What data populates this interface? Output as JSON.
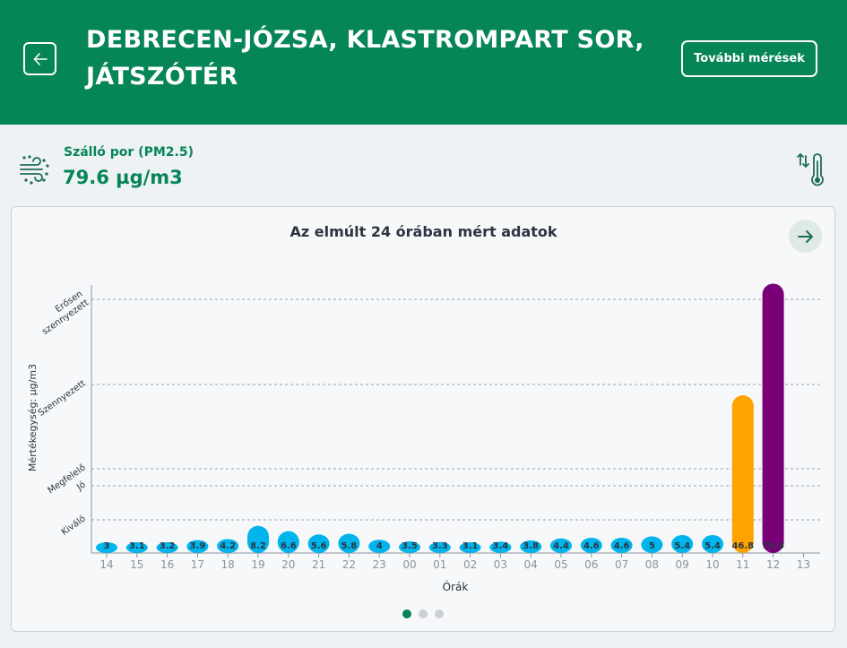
{
  "header": {
    "title": "DEBRECEN-JÓZSA, KLASTROMPART SOR, JÁTSZÓTÉR",
    "more_button": "További mérések",
    "background": "#068557"
  },
  "pollutant": {
    "name": "Szálló por (PM2.5)",
    "value": "79.6 µg/m3"
  },
  "icons": {
    "back": "arrow-left-icon",
    "pollutant": "wind-dust-icon",
    "switch": "thermometer-arrows-icon",
    "next": "arrow-right-icon"
  },
  "chart_data": {
    "type": "bar",
    "title": "Az elmúlt 24 órában mért adatok",
    "xlabel": "Órák",
    "ylabel": "Mértékegység: µg/m3",
    "categories": [
      "14",
      "15",
      "16",
      "17",
      "18",
      "19",
      "20",
      "21",
      "22",
      "23",
      "00",
      "01",
      "02",
      "03",
      "04",
      "05",
      "06",
      "07",
      "08",
      "09",
      "10",
      "11",
      "12",
      "13"
    ],
    "values": [
      3,
      3.1,
      3.2,
      3.9,
      4.2,
      8.2,
      6.6,
      5.6,
      5.8,
      4,
      3.5,
      3.3,
      3.1,
      3.4,
      3.8,
      4.4,
      4.6,
      4.6,
      5,
      5.4,
      5.4,
      46.8,
      79.6,
      null
    ],
    "value_labels": [
      "3",
      "3.1",
      "3.2",
      "3.9",
      "4.2",
      "8.2",
      "6.6",
      "5.6",
      "5.8",
      "4",
      "3.5",
      "3.3",
      "3.1",
      "3.4",
      "3.8",
      "4.4",
      "4.6",
      "4.6",
      "5",
      "5.4",
      "5.4",
      "46.8",
      "79.6",
      ""
    ],
    "bar_colors": [
      "#00b4ec",
      "#00b4ec",
      "#00b4ec",
      "#00b4ec",
      "#00b4ec",
      "#00b4ec",
      "#00b4ec",
      "#00b4ec",
      "#00b4ec",
      "#00b4ec",
      "#00b4ec",
      "#00b4ec",
      "#00b4ec",
      "#00b4ec",
      "#00b4ec",
      "#00b4ec",
      "#00b4ec",
      "#00b4ec",
      "#00b4ec",
      "#00b4ec",
      "#00b4ec",
      "#ffa300",
      "#7a0077",
      "#00b4ec"
    ],
    "thresholds": [
      {
        "label": "Kiváló",
        "value": 10
      },
      {
        "label": "Jó",
        "value": 20
      },
      {
        "label": "Megfelelő",
        "value": 25
      },
      {
        "label": "Szennyezett",
        "value": 50
      },
      {
        "label": "Erősen szennyezett",
        "value": 75
      }
    ],
    "ylim": [
      0,
      80
    ],
    "grid": "dashed-threshold-lines"
  },
  "pagination": {
    "count": 3,
    "active": 0,
    "active_color": "#068557",
    "inactive_color": "#cccfd3"
  }
}
